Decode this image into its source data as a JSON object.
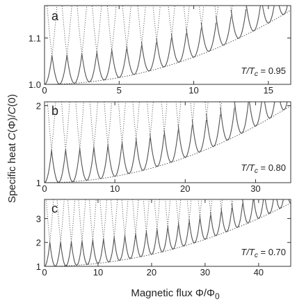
{
  "chart_data": [
    {
      "type": "line",
      "panel_label": "a",
      "annotation": {
        "prefix": "T/T",
        "subscript": "c",
        "suffix": " = 0.95"
      },
      "xlim": [
        0,
        16.5
      ],
      "ylim": [
        1.0,
        1.17
      ],
      "xticks": [
        0,
        5,
        10,
        15
      ],
      "xtick_labels": [
        "0",
        "5",
        "10",
        "15"
      ],
      "yticks": [
        1.0,
        1.1
      ],
      "ytick_labels": [
        "1.0",
        "1.1"
      ],
      "envelope": {
        "y0": 1.0,
        "y_end": 1.16
      },
      "branch": {
        "count": 17,
        "spacing": 1.0,
        "stable_half_width": 0.5,
        "metastable_half_width": 2.0,
        "jump": 0.062
      }
    },
    {
      "type": "line",
      "panel_label": "b",
      "annotation": {
        "prefix": "T/T",
        "subscript": "c",
        "suffix": " = 0.80"
      },
      "xlim": [
        0,
        35
      ],
      "ylim": [
        1.0,
        2.05
      ],
      "xticks": [
        0,
        10,
        20,
        30
      ],
      "xtick_labels": [
        "0",
        "10",
        "20",
        "30"
      ],
      "yticks": [
        1,
        2
      ],
      "ytick_labels": [
        "1",
        "2"
      ],
      "envelope": {
        "y0": 1.0,
        "y_end": 2.0
      },
      "branch": {
        "count": 19,
        "spacing": 2.0,
        "stable_half_width": 1.0,
        "metastable_half_width": 5.0,
        "jump": 0.42
      }
    },
    {
      "type": "line",
      "panel_label": "c",
      "annotation": {
        "prefix": "T/T",
        "subscript": "c",
        "suffix": " = 0.70"
      },
      "xlim": [
        0,
        46
      ],
      "ylim": [
        1.0,
        3.8
      ],
      "xticks": [
        0,
        10,
        20,
        30,
        40
      ],
      "xtick_labels": [
        "0",
        "10",
        "20",
        "30",
        "40"
      ],
      "yticks": [
        1,
        2,
        3
      ],
      "ytick_labels": [
        "1",
        "2",
        "3"
      ],
      "envelope": {
        "y0": 1.0,
        "y_end": 3.65
      },
      "branch": {
        "count": 24,
        "spacing": 2.0,
        "stable_half_width": 1.0,
        "metastable_half_width": 6.5,
        "jump": 1.0
      }
    }
  ],
  "axes": {
    "ylabel": {
      "main": "Specific heat ",
      "italic": "C",
      "mid": "(Φ)/",
      "italic2": "C",
      "end": "(0)"
    },
    "xlabel": {
      "main": "Magnetic flux Φ/Φ",
      "subscript": "0"
    }
  },
  "colors": {
    "line": "#555555",
    "frame": "#333333"
  }
}
